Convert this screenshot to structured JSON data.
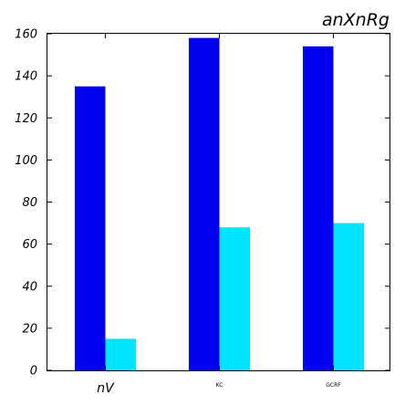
{
  "chart_data": {
    "type": "bar",
    "title": "anXnRg",
    "xlabel": "",
    "ylabel": "",
    "categories": [
      "nV",
      "KC",
      "GCRF"
    ],
    "category_label_sizes": [
      "large",
      "small",
      "small"
    ],
    "series": [
      {
        "values": [
          135,
          158,
          154
        ],
        "color": "#0000ee"
      },
      {
        "values": [
          15,
          68,
          70
        ],
        "color": "#00e5ff"
      }
    ],
    "ylim": [
      0,
      160
    ],
    "yticks": [
      0,
      20,
      40,
      60,
      80,
      100,
      120,
      140,
      160
    ],
    "grid": false,
    "legend": "none"
  }
}
